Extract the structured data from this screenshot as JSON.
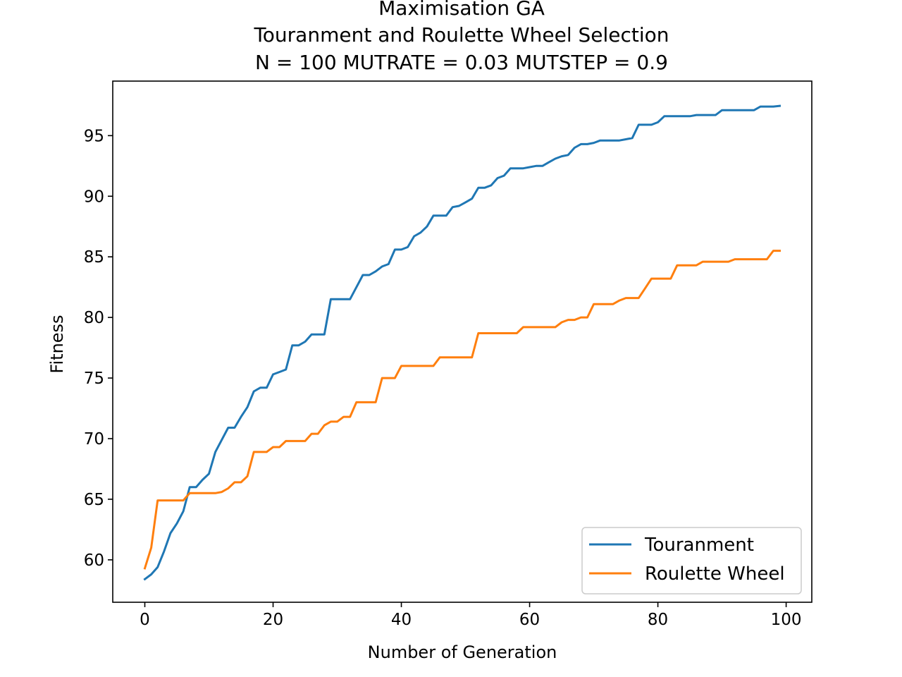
{
  "chart_data": {
    "type": "line",
    "title": [
      "Maximisation GA",
      "Touranment and Roulette Wheel Selection",
      "N = 100 MUTRATE = 0.03 MUTSTEP = 0.9"
    ],
    "xlabel": "Number of Generation",
    "ylabel": "Fitness",
    "xlim": [
      -5,
      104
    ],
    "ylim": [
      56.5,
      99.5
    ],
    "xticks": [
      0,
      20,
      40,
      60,
      80,
      100
    ],
    "yticks": [
      60,
      65,
      70,
      75,
      80,
      85,
      90,
      95
    ],
    "xtick_labels": [
      "0",
      "20",
      "40",
      "60",
      "80",
      "100"
    ],
    "ytick_labels": [
      "60",
      "65",
      "70",
      "75",
      "80",
      "85",
      "90",
      "95"
    ],
    "grid": false,
    "legend_position": "lower-right",
    "series": [
      {
        "name": "Touranment",
        "color": "#1f77b4",
        "x": [
          0,
          1,
          2,
          3,
          4,
          5,
          6,
          7,
          8,
          9,
          10,
          11,
          12,
          13,
          14,
          15,
          16,
          17,
          18,
          19,
          20,
          21,
          22,
          23,
          24,
          25,
          26,
          27,
          28,
          29,
          30,
          31,
          32,
          33,
          34,
          35,
          36,
          37,
          38,
          39,
          40,
          41,
          42,
          43,
          44,
          45,
          46,
          47,
          48,
          49,
          50,
          51,
          52,
          53,
          54,
          55,
          56,
          57,
          58,
          59,
          60,
          61,
          62,
          63,
          64,
          65,
          66,
          67,
          68,
          69,
          70,
          71,
          72,
          73,
          74,
          75,
          76,
          77,
          78,
          79,
          80,
          81,
          82,
          83,
          84,
          85,
          86,
          87,
          88,
          89,
          90,
          91,
          92,
          93,
          94,
          95,
          96,
          97,
          98,
          99
        ],
        "y": [
          58.4,
          58.8,
          59.4,
          60.7,
          62.2,
          63.0,
          64.0,
          66.0,
          66.0,
          66.6,
          67.1,
          68.9,
          69.9,
          70.9,
          70.9,
          71.8,
          72.6,
          73.9,
          74.2,
          74.2,
          75.3,
          75.5,
          75.7,
          77.7,
          77.7,
          78.0,
          78.6,
          78.6,
          78.6,
          81.5,
          81.5,
          81.5,
          81.5,
          82.5,
          83.5,
          83.5,
          83.8,
          84.2,
          84.4,
          85.6,
          85.6,
          85.8,
          86.7,
          87.0,
          87.5,
          88.4,
          88.4,
          88.4,
          89.1,
          89.2,
          89.5,
          89.8,
          90.7,
          90.7,
          90.9,
          91.5,
          91.7,
          92.3,
          92.3,
          92.3,
          92.4,
          92.5,
          92.5,
          92.8,
          93.1,
          93.3,
          93.4,
          94.0,
          94.3,
          94.3,
          94.4,
          94.6,
          94.6,
          94.6,
          94.6,
          94.7,
          94.8,
          95.9,
          95.9,
          95.9,
          96.1,
          96.6,
          96.6,
          96.6,
          96.6,
          96.6,
          96.7,
          96.7,
          96.7,
          96.7,
          97.1,
          97.1,
          97.1,
          97.1,
          97.1,
          97.1,
          97.4,
          97.4,
          97.4,
          97.45
        ]
      },
      {
        "name": "Roulette Wheel",
        "color": "#ff7f0e",
        "x": [
          0,
          1,
          2,
          3,
          4,
          5,
          6,
          7,
          8,
          9,
          10,
          11,
          12,
          13,
          14,
          15,
          16,
          17,
          18,
          19,
          20,
          21,
          22,
          23,
          24,
          25,
          26,
          27,
          28,
          29,
          30,
          31,
          32,
          33,
          34,
          35,
          36,
          37,
          38,
          39,
          40,
          41,
          42,
          43,
          44,
          45,
          46,
          47,
          48,
          49,
          50,
          51,
          52,
          53,
          54,
          55,
          56,
          57,
          58,
          59,
          60,
          61,
          62,
          63,
          64,
          65,
          66,
          67,
          68,
          69,
          70,
          71,
          72,
          73,
          74,
          75,
          76,
          77,
          78,
          79,
          80,
          81,
          82,
          83,
          84,
          85,
          86,
          87,
          88,
          89,
          90,
          91,
          92,
          93,
          94,
          95,
          96,
          97,
          98,
          99
        ],
        "y": [
          59.3,
          61.0,
          64.9,
          64.9,
          64.9,
          64.9,
          64.9,
          65.5,
          65.5,
          65.5,
          65.5,
          65.5,
          65.6,
          65.9,
          66.4,
          66.4,
          66.9,
          68.9,
          68.9,
          68.9,
          69.3,
          69.3,
          69.8,
          69.8,
          69.8,
          69.8,
          70.4,
          70.4,
          71.1,
          71.4,
          71.4,
          71.8,
          71.8,
          73.0,
          73.0,
          73.0,
          73.0,
          75.0,
          75.0,
          75.0,
          76.0,
          76.0,
          76.0,
          76.0,
          76.0,
          76.0,
          76.7,
          76.7,
          76.7,
          76.7,
          76.7,
          76.7,
          78.7,
          78.7,
          78.7,
          78.7,
          78.7,
          78.7,
          78.7,
          79.2,
          79.2,
          79.2,
          79.2,
          79.2,
          79.2,
          79.6,
          79.8,
          79.8,
          80.0,
          80.0,
          81.1,
          81.1,
          81.1,
          81.1,
          81.4,
          81.6,
          81.6,
          81.6,
          82.4,
          83.2,
          83.2,
          83.2,
          83.2,
          84.3,
          84.3,
          84.3,
          84.3,
          84.6,
          84.6,
          84.6,
          84.6,
          84.6,
          84.8,
          84.8,
          84.8,
          84.8,
          84.8,
          84.8,
          85.5,
          85.5
        ]
      }
    ]
  }
}
